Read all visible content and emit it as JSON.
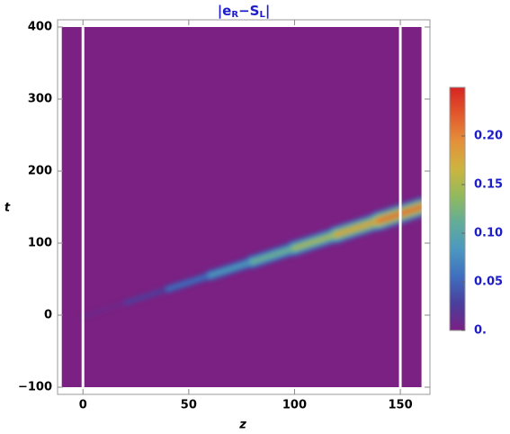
{
  "chart_data": {
    "type": "density",
    "title": [
      "|e",
      "R",
      "−S",
      "L",
      "|"
    ],
    "x_label": "z",
    "y_label": "t",
    "xlim": [
      -12,
      164
    ],
    "ylim": [
      -110,
      410
    ],
    "xticks": [
      0,
      50,
      100,
      150
    ],
    "yticks": [
      {
        "value": -100,
        "label": "−100"
      },
      0,
      100,
      200,
      300,
      400
    ],
    "data_xrange": [
      -10,
      160
    ],
    "data_yrange": [
      -100,
      400
    ],
    "vlines": [
      0,
      150
    ],
    "background_color": "#7a2183",
    "colormap": [
      "#7a2183",
      "#4a3f9d",
      "#3f6fbf",
      "#4b98c0",
      "#62ad98",
      "#93ba5c",
      "#cdb43f",
      "#e4903a",
      "#e2592c",
      "#d62424"
    ],
    "clim": [
      0,
      0.25
    ],
    "cticks": [
      {
        "value": 0,
        "label": "0."
      },
      0.05,
      {
        "value": 0.1,
        "label": "0.10"
      },
      0.15,
      {
        "value": 0.2,
        "label": "0.20"
      }
    ],
    "ridge": {
      "z": [
        0,
        20,
        40,
        60,
        80,
        100,
        120,
        140,
        160
      ],
      "center": [
        -2,
        17,
        36,
        55,
        74,
        93,
        112,
        131,
        150
      ],
      "peak": [
        0.01,
        0.03,
        0.06,
        0.09,
        0.12,
        0.15,
        0.18,
        0.21,
        0.24
      ],
      "width": [
        8,
        12,
        16,
        20,
        24,
        27,
        30,
        33,
        36
      ]
    }
  }
}
